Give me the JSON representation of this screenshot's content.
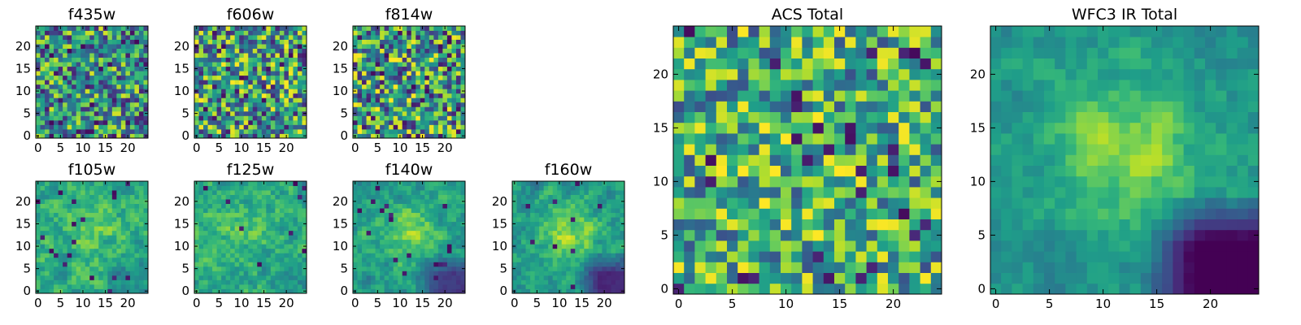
{
  "chart_data": {
    "type": "heatmap",
    "colormap": "viridis",
    "grid_size": 25,
    "axis_ticks": [
      0,
      5,
      10,
      15,
      20
    ],
    "xlim": [
      -0.5,
      24.5
    ],
    "ylim": [
      -0.5,
      24.5
    ],
    "panels": [
      {
        "id": "f435w",
        "title": "f435w",
        "seed": 11,
        "base": 0.52,
        "noise": 0.42,
        "blob": 0.0,
        "dark": 0.05,
        "smooth": 0,
        "lower_right_dark": 0.0
      },
      {
        "id": "f606w",
        "title": "f606w",
        "seed": 23,
        "base": 0.55,
        "noise": 0.45,
        "blob": 0.05,
        "dark": 0.06,
        "smooth": 0,
        "lower_right_dark": 0.0
      },
      {
        "id": "f814w",
        "title": "f814w",
        "seed": 37,
        "base": 0.56,
        "noise": 0.44,
        "blob": 0.05,
        "dark": 0.07,
        "smooth": 0,
        "lower_right_dark": 0.0
      },
      {
        "id": "f105w",
        "title": "f105w",
        "seed": 41,
        "base": 0.62,
        "noise": 0.28,
        "blob": 0.12,
        "dark": 0.02,
        "smooth": 1,
        "lower_right_dark": 0.12
      },
      {
        "id": "f125w",
        "title": "f125w",
        "seed": 53,
        "base": 0.62,
        "noise": 0.28,
        "blob": 0.1,
        "dark": 0.02,
        "smooth": 1,
        "lower_right_dark": 0.1
      },
      {
        "id": "f140w",
        "title": "f140w",
        "seed": 67,
        "base": 0.55,
        "noise": 0.25,
        "blob": 0.25,
        "dark": 0.02,
        "smooth": 1,
        "lower_right_dark": 0.35
      },
      {
        "id": "f160w",
        "title": "f160w",
        "seed": 71,
        "base": 0.55,
        "noise": 0.25,
        "blob": 0.28,
        "dark": 0.02,
        "smooth": 1,
        "lower_right_dark": 0.4
      },
      {
        "id": "acs_total",
        "title": "ACS Total",
        "seed": 83,
        "base": 0.62,
        "noise": 0.38,
        "blob": 0.05,
        "dark": 0.04,
        "smooth": 0,
        "lower_right_dark": 0.0
      },
      {
        "id": "wfc3_ir_total",
        "title": "WFC3 IR Total",
        "seed": 97,
        "base": 0.52,
        "noise": 0.18,
        "blob": 0.32,
        "dark": 0.0,
        "smooth": 1,
        "lower_right_dark": 0.55
      }
    ]
  }
}
